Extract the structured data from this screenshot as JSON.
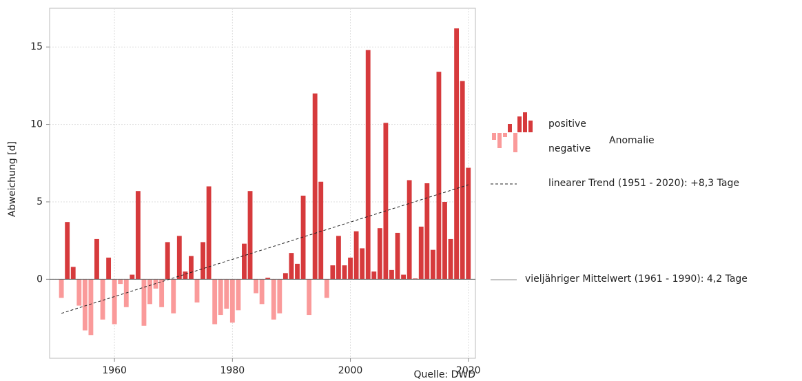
{
  "chart_data": {
    "type": "bar",
    "y_label": "Abweichung [d]",
    "source": "Quelle: DWD",
    "x": [
      1951,
      1952,
      1953,
      1954,
      1955,
      1956,
      1957,
      1958,
      1959,
      1960,
      1961,
      1962,
      1963,
      1964,
      1965,
      1966,
      1967,
      1968,
      1969,
      1970,
      1971,
      1972,
      1973,
      1974,
      1975,
      1976,
      1977,
      1978,
      1979,
      1980,
      1981,
      1982,
      1983,
      1984,
      1985,
      1986,
      1987,
      1988,
      1989,
      1990,
      1991,
      1992,
      1993,
      1994,
      1995,
      1996,
      1997,
      1998,
      1999,
      2000,
      2001,
      2002,
      2003,
      2004,
      2005,
      2006,
      2007,
      2008,
      2009,
      2010,
      2011,
      2012,
      2013,
      2014,
      2015,
      2016,
      2017,
      2018,
      2019,
      2020
    ],
    "values": [
      -1.2,
      3.7,
      0.8,
      -1.7,
      -3.3,
      -3.6,
      2.6,
      -2.6,
      1.4,
      -2.9,
      -0.3,
      -1.8,
      0.3,
      5.7,
      -3.0,
      -1.6,
      -0.6,
      -1.8,
      2.4,
      -2.2,
      2.8,
      0.5,
      1.5,
      -1.5,
      2.4,
      6.0,
      -2.9,
      -2.3,
      -1.9,
      -2.8,
      -2.0,
      2.3,
      5.7,
      -0.9,
      -1.6,
      0.1,
      -2.6,
      -2.2,
      0.4,
      1.7,
      1.0,
      5.4,
      -2.3,
      12.0,
      6.3,
      -1.2,
      0.9,
      2.8,
      0.9,
      1.4,
      3.1,
      2.0,
      14.8,
      0.5,
      3.3,
      10.1,
      0.6,
      3.0,
      0.3,
      6.4,
      0.05,
      3.4,
      6.2,
      1.9,
      13.4,
      5.0,
      2.6,
      16.2,
      12.8,
      7.2
    ],
    "positive_color": "#d63a3c",
    "negative_color": "#fa9a9a",
    "trend": {
      "x": [
        1951,
        2020
      ],
      "values": [
        -2.2,
        6.1
      ],
      "label": "linearer Trend (1951 - 2020): +8,3 Tage"
    },
    "mean_label": "vieljähriger Mittelwert (1961 - 1990): 4,2 Tage",
    "legend": {
      "positive": "positive",
      "negative": "negative",
      "group": "Anomalie"
    },
    "xlim": [
      1949,
      2021.2
    ],
    "ylim": [
      -5.1,
      17.5
    ],
    "xticks": [
      1960,
      1980,
      2000,
      2020
    ],
    "yticks": [
      0,
      5,
      10,
      15
    ],
    "grid": true
  }
}
